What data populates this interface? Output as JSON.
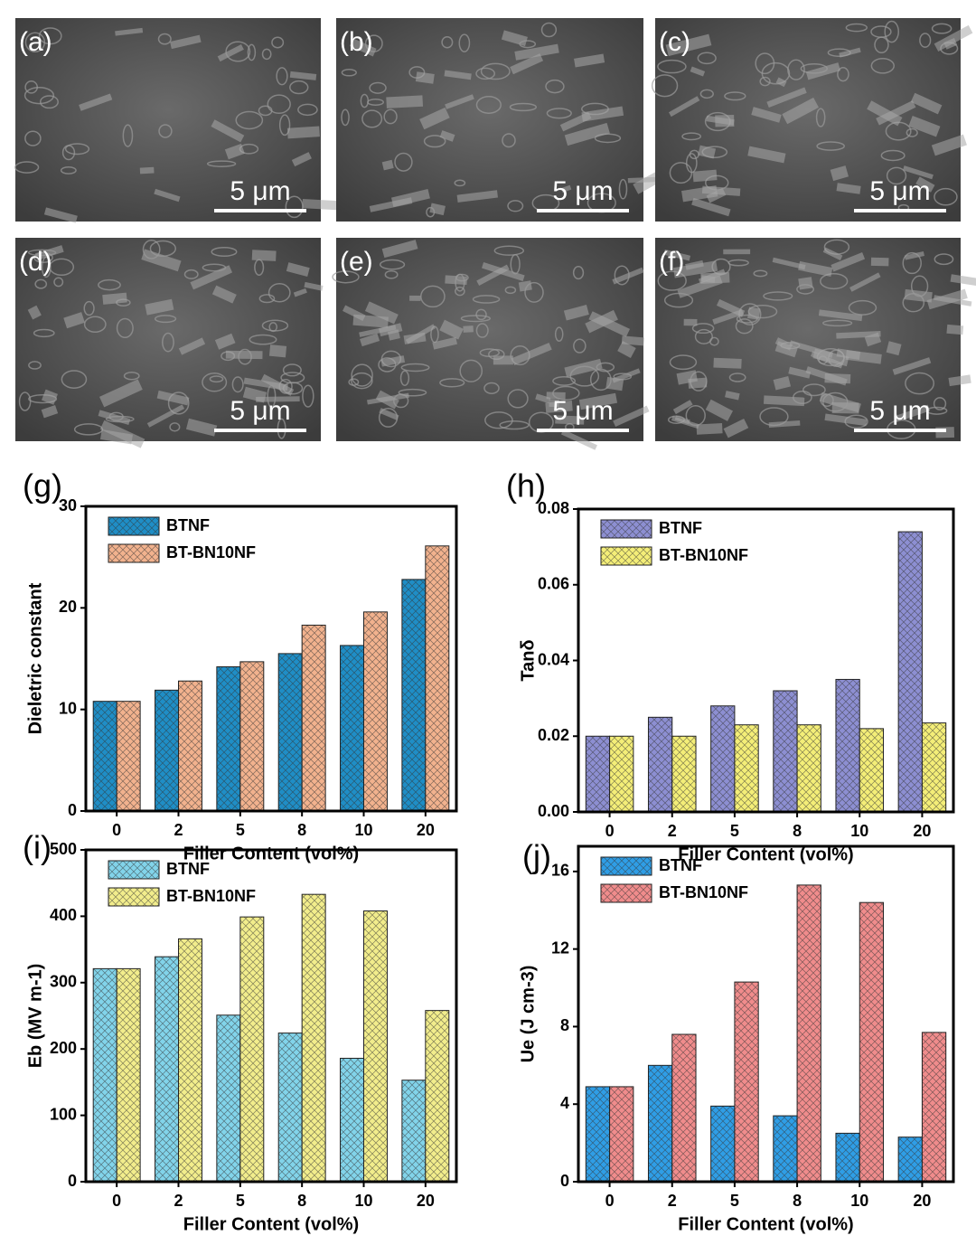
{
  "images": [
    {
      "label": "(a)",
      "scale_bar": "5 μm"
    },
    {
      "label": "(b)",
      "scale_bar": "5 μm"
    },
    {
      "label": "(c)",
      "scale_bar": "5 μm"
    },
    {
      "label": "(d)",
      "scale_bar": "5 μm"
    },
    {
      "label": "(e)",
      "scale_bar": "5 μm"
    },
    {
      "label": "(f)",
      "scale_bar": "5 μm"
    }
  ],
  "chart_data": [
    {
      "type": "bar",
      "panel": "(g)",
      "ylabel": "Dieletric constant",
      "xlabel": "Filler Content (vol%)",
      "categories": [
        "0",
        "2",
        "5",
        "8",
        "10",
        "20"
      ],
      "series": [
        {
          "name": "BTNF",
          "color": "#1f8ec6",
          "values": [
            10.8,
            11.9,
            14.2,
            15.5,
            16.3,
            22.8
          ]
        },
        {
          "name": "BT-BN10NF",
          "color": "#f2b28e",
          "values": [
            10.8,
            12.8,
            14.7,
            18.3,
            19.6,
            26.1
          ]
        }
      ],
      "ylim": [
        0,
        30
      ],
      "yticks": [
        0,
        10,
        20,
        30
      ],
      "legend": "upper left"
    },
    {
      "type": "bar",
      "panel": "(h)",
      "ylabel": "Tanδ",
      "xlabel": "Filler Content (vol%)",
      "categories": [
        "0",
        "2",
        "5",
        "8",
        "10",
        "20"
      ],
      "series": [
        {
          "name": "BTNF",
          "color": "#8d8fd2",
          "values": [
            0.02,
            0.025,
            0.028,
            0.032,
            0.035,
            0.074
          ]
        },
        {
          "name": "BT-BN10NF",
          "color": "#f4ee78",
          "values": [
            0.02,
            0.02,
            0.023,
            0.023,
            0.022,
            0.0235
          ]
        }
      ],
      "ylim": [
        0,
        0.08
      ],
      "yticks": [
        {
          "value": 0,
          "label": "0.00"
        },
        {
          "value": 0.02,
          "label": "0.02"
        },
        {
          "value": 0.04,
          "label": "0.04"
        },
        {
          "value": 0.06,
          "label": "0.06"
        },
        {
          "value": 0.08,
          "label": "0.08"
        }
      ],
      "legend": "upper left"
    },
    {
      "type": "bar",
      "panel": "(i)",
      "ylabel": "Eb (MV m-1)",
      "xlabel": "Filler Content (vol%)",
      "categories": [
        "0",
        "2",
        "5",
        "8",
        "10",
        "20"
      ],
      "series": [
        {
          "name": "BTNF",
          "color": "#82d4ea",
          "values": [
            321,
            339,
            251,
            224,
            186,
            153
          ]
        },
        {
          "name": "BT-BN10NF",
          "color": "#f2ed8c",
          "values": [
            321,
            366,
            399,
            433,
            408,
            258
          ]
        }
      ],
      "ylim": [
        0,
        500
      ],
      "yticks": [
        0,
        100,
        200,
        300,
        400,
        500
      ],
      "legend": "upper left"
    },
    {
      "type": "bar",
      "panel": "(j)",
      "ylabel": "Ue (J cm-3)",
      "xlabel": "Filler Content (vol%)",
      "categories": [
        "0",
        "2",
        "5",
        "8",
        "10",
        "20"
      ],
      "series": [
        {
          "name": "BTNF",
          "color": "#2f9ee6",
          "values": [
            4.9,
            6.0,
            3.9,
            3.4,
            2.5,
            2.3
          ]
        },
        {
          "name": "BT-BN10NF",
          "color": "#f08c8c",
          "values": [
            4.9,
            7.6,
            10.3,
            15.3,
            14.4,
            7.7
          ]
        }
      ],
      "ylim": [
        0,
        17.3
      ],
      "yticks": [
        0,
        4,
        8,
        12,
        16
      ],
      "legend": "upper left"
    }
  ]
}
